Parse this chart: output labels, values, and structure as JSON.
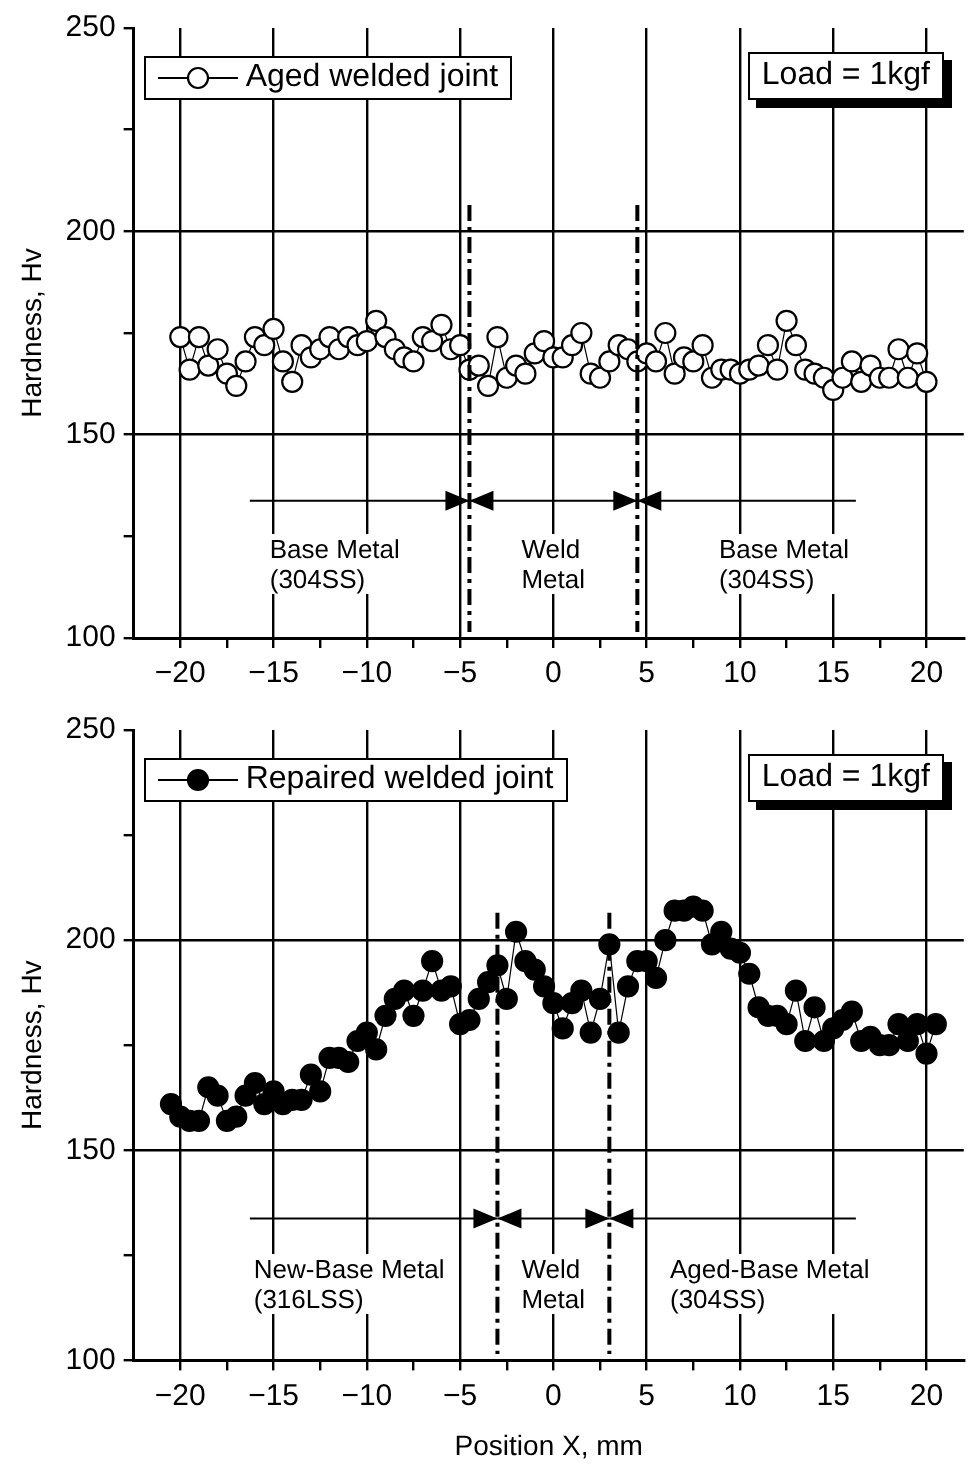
{
  "chart_data": [
    {
      "type": "line",
      "ylabel": "Hardness, Hv",
      "legend": "top left",
      "marker": "circle",
      "grid": true,
      "xlim": [
        -22.5,
        22
      ],
      "xticks": [
        {
          "value": -20,
          "label": "−20"
        },
        {
          "value": -17.5,
          "label": null
        },
        {
          "value": -15,
          "label": "−15"
        },
        {
          "value": -12.5,
          "label": null
        },
        {
          "value": -10,
          "label": "−10"
        },
        {
          "value": -7.5,
          "label": null
        },
        {
          "value": -5,
          "label": "−5"
        },
        {
          "value": -2.5,
          "label": null
        },
        0,
        {
          "value": 2.5,
          "label": null
        },
        5,
        {
          "value": 7.5,
          "label": null
        },
        10,
        {
          "value": 12.5,
          "label": null
        },
        15,
        {
          "value": 17.5,
          "label": null
        },
        20
      ],
      "ylim": [
        100,
        250
      ],
      "yticks": [
        100,
        {
          "value": 125,
          "label": null
        },
        150,
        {
          "value": 175,
          "label": null
        },
        200,
        {
          "value": 225,
          "label": null
        },
        250
      ],
      "series": [
        {
          "name": "Aged welded joint",
          "color": "#ffffff",
          "x": [
            -20,
            -19.5,
            -19,
            -18.5,
            -18,
            -17.5,
            -17,
            -16.5,
            -16,
            -15.5,
            -15,
            -14.5,
            -14,
            -13.5,
            -13,
            -12.5,
            -12,
            -11.5,
            -11,
            -10.5,
            -10,
            -9.5,
            -9,
            -8.5,
            -8,
            -7.5,
            -7,
            -6.5,
            -6,
            -5.5,
            -5,
            -4.5,
            -4,
            -3.5,
            -3,
            -2.5,
            -2,
            -1.5,
            -1,
            -0.5,
            0,
            0.5,
            1,
            1.5,
            2,
            2.5,
            3,
            3.5,
            4,
            4.5,
            5,
            5.5,
            6,
            6.5,
            7,
            7.5,
            8,
            8.5,
            9,
            9.5,
            10,
            10.5,
            11,
            11.5,
            12,
            12.5,
            13,
            13.5,
            14,
            14.5,
            15,
            15.5,
            16,
            16.5,
            17,
            17.5,
            18,
            18.5,
            19,
            19.5,
            20
          ],
          "values": [
            174,
            166,
            174,
            167,
            171,
            165,
            162,
            168,
            174,
            172,
            176,
            168,
            163,
            172,
            169,
            171,
            174,
            171,
            174,
            172,
            173,
            178,
            174,
            171,
            169,
            168,
            174,
            173,
            177,
            171,
            172,
            166,
            167,
            162,
            174,
            164,
            167,
            165,
            170,
            173,
            169,
            169,
            172,
            175,
            165,
            164,
            168,
            172,
            171,
            168,
            170,
            168,
            175,
            165,
            169,
            168,
            172,
            164,
            166,
            166,
            165,
            166,
            167,
            172,
            166,
            178,
            172,
            166,
            165,
            164,
            161,
            164,
            168,
            163,
            167,
            164,
            164,
            171,
            164,
            170,
            163
          ]
        }
      ],
      "ref_lines": [
        {
          "axis": "x",
          "value": -4.5,
          "line_style": "dashed"
        },
        {
          "axis": "x",
          "value": 4.5,
          "line_style": "dashed"
        }
      ],
      "annotations": [
        "Load = 1kgf",
        "Base Metal\n(304SS)",
        "Weld\nMetal",
        "Base Metal\n(304SS)"
      ]
    },
    {
      "type": "line",
      "xlabel": "Position X, mm",
      "ylabel": "Hardness, Hv",
      "legend": "top left",
      "marker": "circle",
      "grid": true,
      "xlim": [
        -22.5,
        22
      ],
      "xticks": [
        {
          "value": -20,
          "label": "−20"
        },
        {
          "value": -17.5,
          "label": null
        },
        {
          "value": -15,
          "label": "−15"
        },
        {
          "value": -12.5,
          "label": null
        },
        {
          "value": -10,
          "label": "−10"
        },
        {
          "value": -7.5,
          "label": null
        },
        {
          "value": -5,
          "label": "−5"
        },
        {
          "value": -2.5,
          "label": null
        },
        0,
        {
          "value": 2.5,
          "label": null
        },
        5,
        {
          "value": 7.5,
          "label": null
        },
        10,
        {
          "value": 12.5,
          "label": null
        },
        15,
        {
          "value": 17.5,
          "label": null
        },
        20
      ],
      "ylim": [
        100,
        250
      ],
      "yticks": [
        100,
        {
          "value": 125,
          "label": null
        },
        150,
        {
          "value": 175,
          "label": null
        },
        200,
        {
          "value": 225,
          "label": null
        },
        250
      ],
      "series": [
        {
          "name": "Repaired welded joint",
          "color": "#000000",
          "x": [
            -20.5,
            -20,
            -19.5,
            -19,
            -18.5,
            -18,
            -17.5,
            -17,
            -16.5,
            -16,
            -15.5,
            -15,
            -14.5,
            -14,
            -13.5,
            -13,
            -12.5,
            -12,
            -11.5,
            -11,
            -10.5,
            -10,
            -9.5,
            -9,
            -8.5,
            -8,
            -7.5,
            -7,
            -6.5,
            -6,
            -5.5,
            -5,
            -4.5,
            -4,
            -3.5,
            -3,
            -2.5,
            -2,
            -1.5,
            -1,
            -0.5,
            0,
            0.5,
            1,
            1.5,
            2,
            2.5,
            3,
            3.5,
            4,
            4.5,
            5,
            5.5,
            6,
            6.5,
            7,
            7.5,
            8,
            8.5,
            9,
            9.5,
            10,
            10.5,
            11,
            11.5,
            12,
            12.5,
            13,
            13.5,
            14,
            14.5,
            15,
            15.5,
            16,
            16.5,
            17,
            17.5,
            18,
            18.5,
            19,
            19.5,
            20,
            20.5
          ],
          "values": [
            161,
            158,
            157,
            157,
            165,
            163,
            157,
            158,
            163,
            166,
            161,
            164,
            161,
            162,
            162,
            168,
            164,
            172,
            172,
            171,
            176,
            178,
            174,
            182,
            186,
            188,
            182,
            188,
            195,
            188,
            189,
            180,
            181,
            186,
            190,
            194,
            186,
            202,
            195,
            193,
            189,
            185,
            179,
            185,
            188,
            178,
            186,
            199,
            178,
            189,
            195,
            195,
            191,
            200,
            207,
            207,
            208,
            207,
            199,
            202,
            198,
            197,
            192,
            184,
            182,
            182,
            180,
            188,
            176,
            184,
            176,
            179,
            181,
            183,
            176,
            177,
            175,
            175,
            180,
            176,
            180,
            173,
            180
          ]
        }
      ],
      "ref_lines": [
        {
          "axis": "x",
          "value": -3,
          "line_style": "dashed"
        },
        {
          "axis": "x",
          "value": 3,
          "line_style": "dashed"
        }
      ],
      "annotations": [
        "Load = 1kgf",
        "New-Base Metal\n(316LSS)",
        "Weld\nMetal",
        "Aged-Base Metal\n(304SS)"
      ]
    }
  ]
}
